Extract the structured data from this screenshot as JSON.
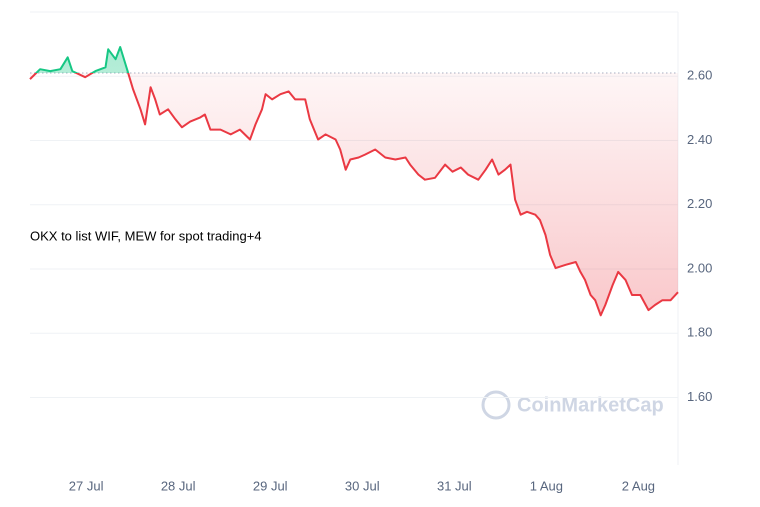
{
  "chart_data": {
    "type": "line",
    "annotation": "OKX to list WIF, MEW for spot trading+4",
    "watermark": "CoinMarketCap",
    "baseline": 2.61,
    "up_color": "#16c784",
    "down_color": "#ea3943",
    "grid": true,
    "xlim": [
      26.39,
      33.43
    ],
    "xticks": [
      {
        "value": 27,
        "label": "27 Jul"
      },
      {
        "value": 28,
        "label": "28 Jul"
      },
      {
        "value": 29,
        "label": "29 Jul"
      },
      {
        "value": 30,
        "label": "30 Jul"
      },
      {
        "value": 31,
        "label": "31 Jul"
      },
      {
        "value": 32,
        "label": "1 Aug"
      },
      {
        "value": 33,
        "label": "2 Aug"
      }
    ],
    "ylim": [
      1.39,
      2.8
    ],
    "yticks": [
      {
        "value": 1.6,
        "label": "1.60"
      },
      {
        "value": 1.8,
        "label": "1.80"
      },
      {
        "value": 2.0,
        "label": "2.00"
      },
      {
        "value": 2.2,
        "label": "2.20"
      },
      {
        "value": 2.4,
        "label": "2.40"
      },
      {
        "value": 2.6,
        "label": "2.60"
      }
    ],
    "x": [
      26.39,
      26.5,
      26.61,
      26.72,
      26.8,
      26.85,
      26.99,
      27.1,
      27.21,
      27.24,
      27.32,
      27.37,
      27.45,
      27.51,
      27.59,
      27.64,
      27.7,
      27.75,
      27.8,
      27.89,
      27.97,
      28.04,
      28.13,
      28.24,
      28.29,
      28.35,
      28.46,
      28.57,
      28.67,
      28.78,
      28.84,
      28.91,
      28.95,
      29.02,
      29.11,
      29.2,
      29.27,
      29.38,
      29.43,
      29.52,
      29.6,
      29.71,
      29.76,
      29.82,
      29.87,
      29.96,
      30.03,
      30.14,
      30.25,
      30.36,
      30.47,
      30.52,
      30.61,
      30.68,
      30.79,
      30.9,
      30.98,
      31.07,
      31.15,
      31.26,
      31.34,
      31.41,
      31.48,
      31.55,
      31.61,
      31.66,
      31.72,
      31.79,
      31.88,
      31.93,
      31.99,
      32.04,
      32.1,
      32.21,
      32.32,
      32.37,
      32.42,
      32.48,
      32.53,
      32.59,
      32.64,
      32.72,
      32.78,
      32.86,
      32.93,
      33.02,
      33.11,
      33.18,
      33.26,
      33.35,
      33.43
    ],
    "values": [
      2.591,
      2.622,
      2.616,
      2.622,
      2.659,
      2.616,
      2.597,
      2.616,
      2.628,
      2.684,
      2.653,
      2.691,
      2.616,
      2.559,
      2.497,
      2.45,
      2.566,
      2.528,
      2.481,
      2.497,
      2.466,
      2.441,
      2.459,
      2.472,
      2.481,
      2.434,
      2.434,
      2.419,
      2.434,
      2.403,
      2.45,
      2.497,
      2.544,
      2.528,
      2.544,
      2.553,
      2.528,
      2.528,
      2.466,
      2.403,
      2.419,
      2.403,
      2.372,
      2.309,
      2.341,
      2.347,
      2.356,
      2.372,
      2.347,
      2.341,
      2.347,
      2.325,
      2.294,
      2.278,
      2.284,
      2.325,
      2.303,
      2.316,
      2.294,
      2.278,
      2.309,
      2.341,
      2.294,
      2.309,
      2.325,
      2.216,
      2.169,
      2.178,
      2.169,
      2.153,
      2.106,
      2.044,
      2.003,
      2.013,
      2.022,
      1.991,
      1.966,
      1.919,
      1.903,
      1.856,
      1.888,
      1.95,
      1.991,
      1.966,
      1.919,
      1.919,
      1.872,
      1.888,
      1.903,
      1.903,
      1.928
    ]
  }
}
